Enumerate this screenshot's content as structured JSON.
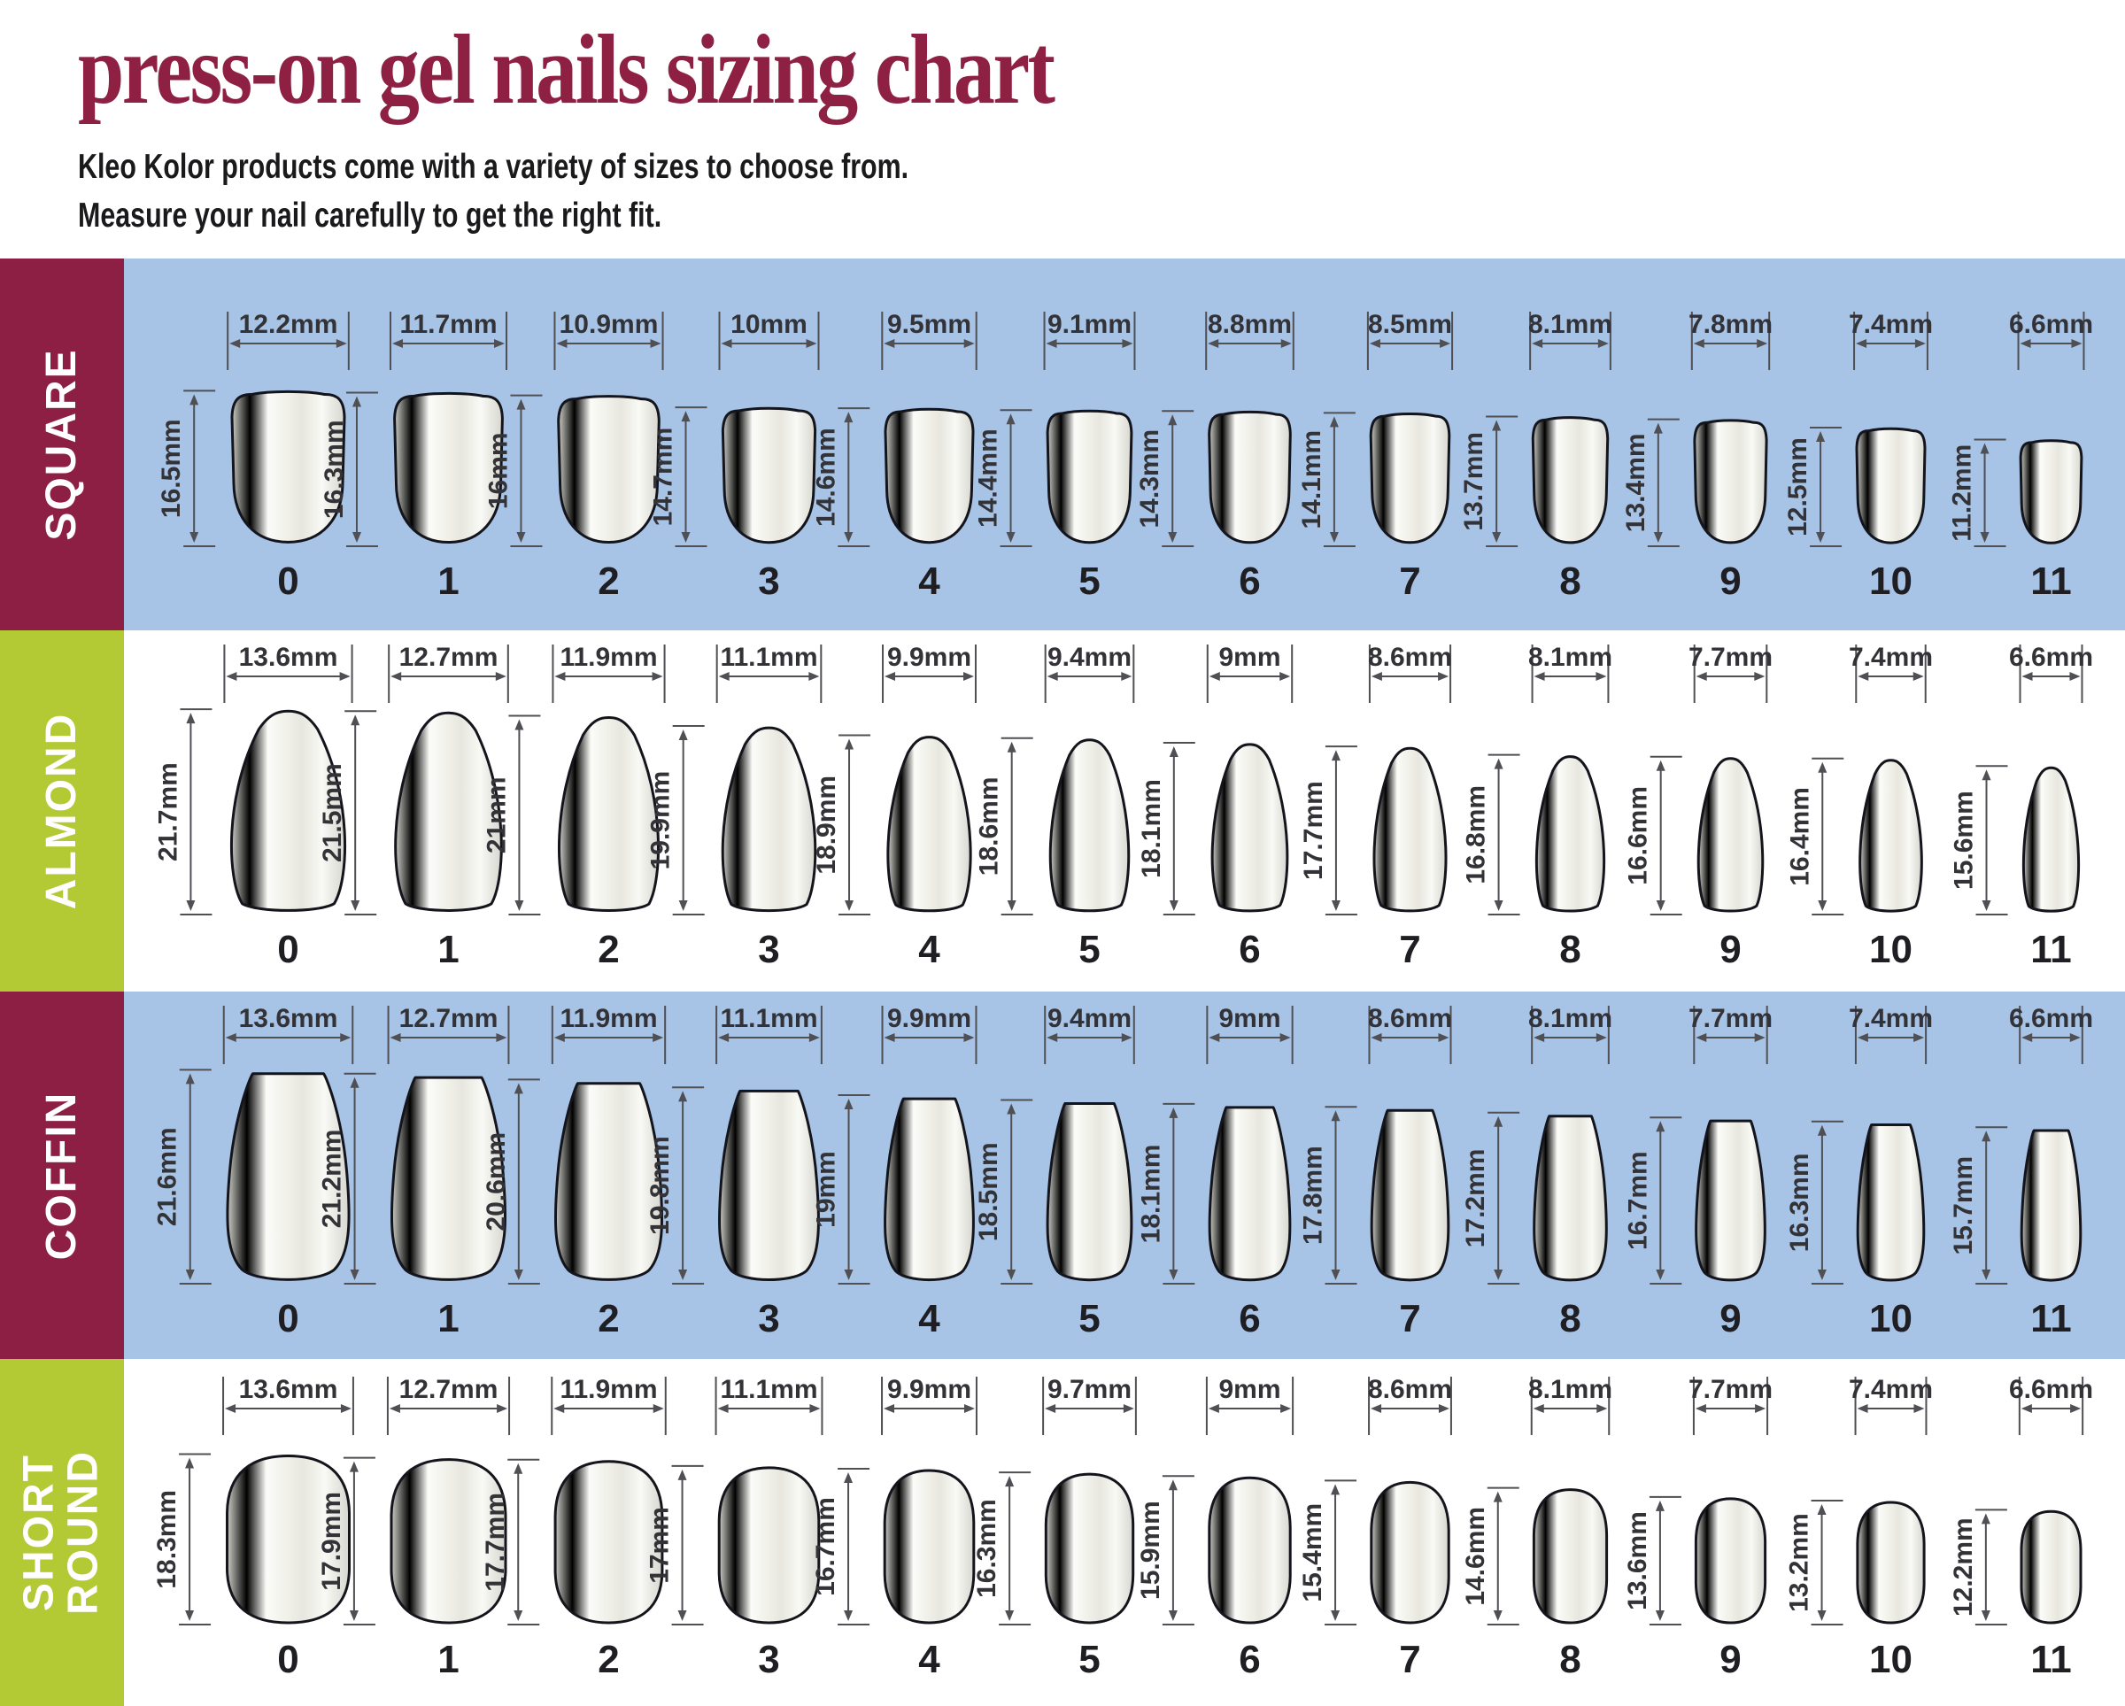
{
  "page": {
    "title": "press-on gel nails sizing chart",
    "subtitle_line1": "Kleo Kolor products come with a variety of sizes to choose from.",
    "subtitle_line2": "Measure your nail carefully to get the right fit.",
    "unit": "mm"
  },
  "colors": {
    "title_maroon": "#8e2044",
    "sidebar_maroon": "#8d1f44",
    "sidebar_green": "#b4ca35",
    "row_blue": "#a7c3e5",
    "row_white": "#ffffff",
    "nail_outline": "#14141c",
    "dimension_line": "#4f4f54",
    "dimension_text": "#323237",
    "size_number": "#1e1e23",
    "subtitle_text": "#1a1a1c"
  },
  "rows": [
    {
      "label": "SQUARE",
      "shape": "square",
      "sidebar": "maroon",
      "background": "blue",
      "sizes": [
        {
          "size": "0",
          "width_mm": 12.2,
          "height_mm": 16.5,
          "width_label": "12.2mm",
          "height_label": "16.5mm"
        },
        {
          "size": "1",
          "width_mm": 11.7,
          "height_mm": 16.3,
          "width_label": "11.7mm",
          "height_label": "16.3mm"
        },
        {
          "size": "2",
          "width_mm": 10.9,
          "height_mm": 16,
          "width_label": "10.9mm",
          "height_label": "16mm"
        },
        {
          "size": "3",
          "width_mm": 10,
          "height_mm": 14.7,
          "width_label": "10mm",
          "height_label": "14.7mm"
        },
        {
          "size": "4",
          "width_mm": 9.5,
          "height_mm": 14.6,
          "width_label": "9.5mm",
          "height_label": "14.6mm"
        },
        {
          "size": "5",
          "width_mm": 9.1,
          "height_mm": 14.4,
          "width_label": "9.1mm",
          "height_label": "14.4mm"
        },
        {
          "size": "6",
          "width_mm": 8.8,
          "height_mm": 14.3,
          "width_label": "8.8mm",
          "height_label": "14.3mm"
        },
        {
          "size": "7",
          "width_mm": 8.5,
          "height_mm": 14.1,
          "width_label": "8.5mm",
          "height_label": "14.1mm"
        },
        {
          "size": "8",
          "width_mm": 8.1,
          "height_mm": 13.7,
          "width_label": "8.1mm",
          "height_label": "13.7mm"
        },
        {
          "size": "9",
          "width_mm": 7.8,
          "height_mm": 13.4,
          "width_label": "7.8mm",
          "height_label": "13.4mm"
        },
        {
          "size": "10",
          "width_mm": 7.4,
          "height_mm": 12.5,
          "width_label": "7.4mm",
          "height_label": "12.5mm"
        },
        {
          "size": "11",
          "width_mm": 6.6,
          "height_mm": 11.2,
          "width_label": "6.6mm",
          "height_label": "11.2mm"
        }
      ]
    },
    {
      "label": "ALMOND",
      "shape": "almond",
      "sidebar": "green",
      "background": "white",
      "sizes": [
        {
          "size": "0",
          "width_mm": 13.6,
          "height_mm": 21.7,
          "width_label": "13.6mm",
          "height_label": "21.7mm"
        },
        {
          "size": "1",
          "width_mm": 12.7,
          "height_mm": 21.5,
          "width_label": "12.7mm",
          "height_label": "21.5mm"
        },
        {
          "size": "2",
          "width_mm": 11.9,
          "height_mm": 21,
          "width_label": "11.9mm",
          "height_label": "21mm"
        },
        {
          "size": "3",
          "width_mm": 11.1,
          "height_mm": 19.9,
          "width_label": "11.1mm",
          "height_label": "19.9mm"
        },
        {
          "size": "4",
          "width_mm": 9.9,
          "height_mm": 18.9,
          "width_label": "9.9mm",
          "height_label": "18.9mm"
        },
        {
          "size": "5",
          "width_mm": 9.4,
          "height_mm": 18.6,
          "width_label": "9.4mm",
          "height_label": "18.6mm"
        },
        {
          "size": "6",
          "width_mm": 9,
          "height_mm": 18.1,
          "width_label": "9mm",
          "height_label": "18.1mm"
        },
        {
          "size": "7",
          "width_mm": 8.6,
          "height_mm": 17.7,
          "width_label": "8.6mm",
          "height_label": "17.7mm"
        },
        {
          "size": "8",
          "width_mm": 8.1,
          "height_mm": 16.8,
          "width_label": "8.1mm",
          "height_label": "16.8mm"
        },
        {
          "size": "9",
          "width_mm": 7.7,
          "height_mm": 16.6,
          "width_label": "7.7mm",
          "height_label": "16.6mm"
        },
        {
          "size": "10",
          "width_mm": 7.4,
          "height_mm": 16.4,
          "width_label": "7.4mm",
          "height_label": "16.4mm"
        },
        {
          "size": "11",
          "width_mm": 6.6,
          "height_mm": 15.6,
          "width_label": "6.6mm",
          "height_label": "15.6mm"
        }
      ]
    },
    {
      "label": "COFFIN",
      "shape": "coffin",
      "sidebar": "maroon",
      "background": "blue",
      "sizes": [
        {
          "size": "0",
          "width_mm": 13.6,
          "height_mm": 21.6,
          "width_label": "13.6mm",
          "height_label": "21.6mm"
        },
        {
          "size": "1",
          "width_mm": 12.7,
          "height_mm": 21.2,
          "width_label": "12.7mm",
          "height_label": "21.2mm"
        },
        {
          "size": "2",
          "width_mm": 11.9,
          "height_mm": 20.6,
          "width_label": "11.9mm",
          "height_label": "20.6mm"
        },
        {
          "size": "3",
          "width_mm": 11.1,
          "height_mm": 19.8,
          "width_label": "11.1mm",
          "height_label": "19.8mm"
        },
        {
          "size": "4",
          "width_mm": 9.9,
          "height_mm": 19,
          "width_label": "9.9mm",
          "height_label": "19mm"
        },
        {
          "size": "5",
          "width_mm": 9.4,
          "height_mm": 18.5,
          "width_label": "9.4mm",
          "height_label": "18.5mm"
        },
        {
          "size": "6",
          "width_mm": 9,
          "height_mm": 18.1,
          "width_label": "9mm",
          "height_label": "18.1mm"
        },
        {
          "size": "7",
          "width_mm": 8.6,
          "height_mm": 17.8,
          "width_label": "8.6mm",
          "height_label": "17.8mm"
        },
        {
          "size": "8",
          "width_mm": 8.1,
          "height_mm": 17.2,
          "width_label": "8.1mm",
          "height_label": "17.2mm"
        },
        {
          "size": "9",
          "width_mm": 7.7,
          "height_mm": 16.7,
          "width_label": "7.7mm",
          "height_label": "16.7mm"
        },
        {
          "size": "10",
          "width_mm": 7.4,
          "height_mm": 16.3,
          "width_label": "7.4mm",
          "height_label": "16.3mm"
        },
        {
          "size": "11",
          "width_mm": 6.6,
          "height_mm": 15.7,
          "width_label": "6.6mm",
          "height_label": "15.7mm"
        }
      ]
    },
    {
      "label": "SHORT\nROUND",
      "shape": "short-round",
      "sidebar": "green",
      "background": "white",
      "sizes": [
        {
          "size": "0",
          "width_mm": 13.6,
          "height_mm": 18.3,
          "width_label": "13.6mm",
          "height_label": "18.3mm"
        },
        {
          "size": "1",
          "width_mm": 12.7,
          "height_mm": 17.9,
          "width_label": "12.7mm",
          "height_label": "17.9mm"
        },
        {
          "size": "2",
          "width_mm": 11.9,
          "height_mm": 17.7,
          "width_label": "11.9mm",
          "height_label": "17.7mm"
        },
        {
          "size": "3",
          "width_mm": 11.1,
          "height_mm": 17,
          "width_label": "11.1mm",
          "height_label": "17mm"
        },
        {
          "size": "4",
          "width_mm": 9.9,
          "height_mm": 16.7,
          "width_label": "9.9mm",
          "height_label": "16.7mm"
        },
        {
          "size": "5",
          "width_mm": 9.7,
          "height_mm": 16.3,
          "width_label": "9.7mm",
          "height_label": "16.3mm"
        },
        {
          "size": "6",
          "width_mm": 9,
          "height_mm": 15.9,
          "width_label": "9mm",
          "height_label": "15.9mm"
        },
        {
          "size": "7",
          "width_mm": 8.6,
          "height_mm": 15.4,
          "width_label": "8.6mm",
          "height_label": "15.4mm"
        },
        {
          "size": "8",
          "width_mm": 8.1,
          "height_mm": 14.6,
          "width_label": "8.1mm",
          "height_label": "14.6mm"
        },
        {
          "size": "9",
          "width_mm": 7.7,
          "height_mm": 13.6,
          "width_label": "7.7mm",
          "height_label": "13.6mm"
        },
        {
          "size": "10",
          "width_mm": 7.4,
          "height_mm": 13.2,
          "width_label": "7.4mm",
          "height_label": "13.2mm"
        },
        {
          "size": "11",
          "width_mm": 6.6,
          "height_mm": 12.2,
          "width_label": "6.6mm",
          "height_label": "12.2mm"
        }
      ]
    }
  ]
}
